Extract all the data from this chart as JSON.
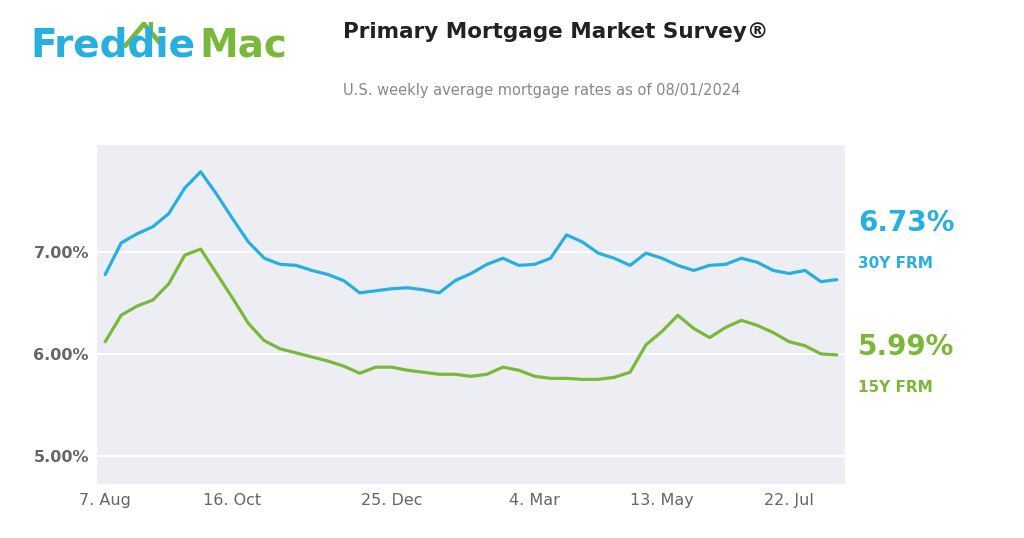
{
  "title": "Primary Mortgage Market Survey®",
  "subtitle": "U.S. weekly average mortgage rates as of 08/01/2024",
  "x_labels": [
    "7. Aug",
    "16. Oct",
    "25. Dec",
    "4. Mar",
    "13. May",
    "22. Jul"
  ],
  "y_ticks": [
    5.0,
    6.0,
    7.0
  ],
  "y_labels": [
    "5.00%",
    "6.00%",
    "7.00%"
  ],
  "ylim": [
    4.72,
    8.05
  ],
  "rate_30y_label": "6.73%",
  "rate_30y_sub": "30Y FRM",
  "rate_15y_label": "5.99%",
  "rate_15y_sub": "15Y FRM",
  "color_30y": "#27AFDF",
  "color_15y": "#7AB83A",
  "color_freddie": "#27AFDF",
  "color_mac": "#7AB83A",
  "color_house": "#7AB83A",
  "bg_plot": "#EDEEF3",
  "bg_outer": "#FFFFFF",
  "grid_color": "#FFFFFF",
  "tick_color": "#666666",
  "title_color": "#222222",
  "subtitle_color": "#888888",
  "y30_values": [
    6.78,
    7.09,
    7.18,
    7.25,
    7.38,
    7.63,
    7.79,
    7.57,
    7.33,
    7.1,
    6.94,
    6.88,
    6.87,
    6.82,
    6.78,
    6.72,
    6.6,
    6.62,
    6.64,
    6.65,
    6.63,
    6.6,
    6.72,
    6.79,
    6.88,
    6.94,
    6.87,
    6.88,
    6.94,
    7.17,
    7.1,
    6.99,
    6.94,
    6.87,
    6.99,
    6.94,
    6.87,
    6.82,
    6.87,
    6.88,
    6.94,
    6.9,
    6.82,
    6.79,
    6.82,
    6.71,
    6.73
  ],
  "y15_values": [
    6.12,
    6.38,
    6.47,
    6.53,
    6.69,
    6.97,
    7.03,
    6.79,
    6.55,
    6.3,
    6.13,
    6.05,
    6.01,
    5.97,
    5.93,
    5.88,
    5.81,
    5.87,
    5.87,
    5.84,
    5.82,
    5.8,
    5.8,
    5.78,
    5.8,
    5.87,
    5.84,
    5.78,
    5.76,
    5.76,
    5.75,
    5.75,
    5.77,
    5.82,
    6.09,
    6.22,
    6.38,
    6.25,
    6.16,
    6.26,
    6.33,
    6.28,
    6.21,
    6.12,
    6.08,
    6.0,
    5.99
  ],
  "x_tick_indices": [
    0,
    8,
    18,
    27,
    35,
    43
  ]
}
